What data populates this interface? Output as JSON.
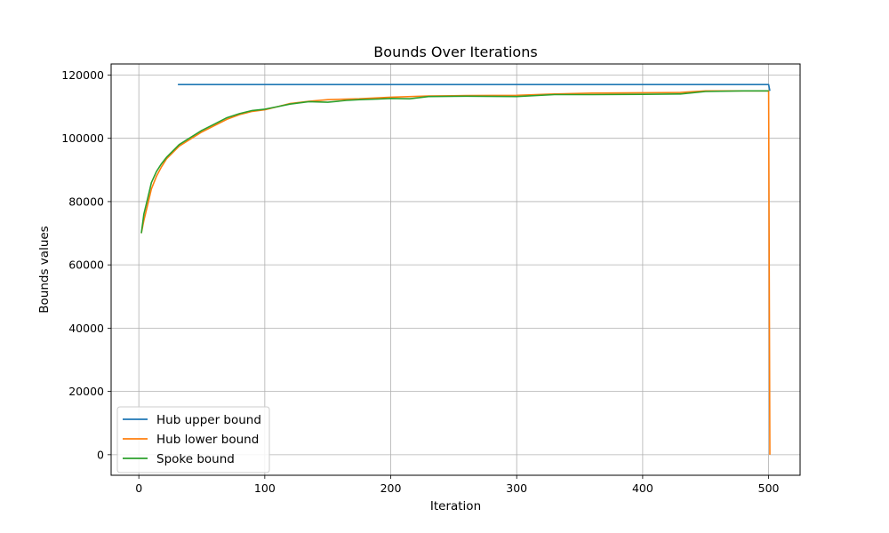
{
  "chart_data": {
    "type": "line",
    "title": "Bounds Over Iterations",
    "xlabel": "Iteration",
    "ylabel": "Bounds values",
    "xlim": [
      -22,
      525
    ],
    "ylim": [
      -6500,
      123500
    ],
    "xticks": [
      0,
      100,
      200,
      300,
      400,
      500
    ],
    "yticks": [
      0,
      20000,
      40000,
      60000,
      80000,
      100000,
      120000
    ],
    "grid": true,
    "legend_position": "lower-left",
    "colors": {
      "hub_upper": "#1f77b4",
      "hub_lower": "#ff7f0e",
      "spoke": "#2ca02c",
      "grid": "#b0b0b0"
    },
    "series": [
      {
        "name": "Hub upper bound",
        "color": "#1f77b4",
        "x": [
          31,
          500,
          501
        ],
        "y": [
          117000,
          117000,
          115000
        ]
      },
      {
        "name": "Hub lower bound",
        "color": "#ff7f0e",
        "x": [
          2,
          4,
          7,
          10,
          14,
          18,
          22,
          27,
          32,
          40,
          50,
          60,
          70,
          80,
          90,
          100,
          110,
          120,
          135,
          150,
          175,
          200,
          230,
          260,
          300,
          330,
          360,
          400,
          430,
          450,
          480,
          500,
          501
        ],
        "y": [
          70000,
          74000,
          79000,
          84000,
          88000,
          91000,
          93500,
          95500,
          97500,
          99500,
          102000,
          104000,
          106000,
          107500,
          108500,
          109000,
          110000,
          111000,
          111700,
          112200,
          112500,
          113000,
          113400,
          113500,
          113600,
          114000,
          114300,
          114400,
          114500,
          115000,
          115000,
          115000,
          0
        ]
      },
      {
        "name": "Spoke bound",
        "color": "#2ca02c",
        "x": [
          2,
          4,
          7,
          10,
          14,
          18,
          22,
          27,
          32,
          40,
          50,
          60,
          70,
          80,
          90,
          100,
          110,
          120,
          135,
          150,
          165,
          175,
          190,
          200,
          215,
          230,
          260,
          300,
          330,
          360,
          400,
          430,
          450,
          480,
          500
        ],
        "y": [
          70000,
          76000,
          81000,
          86000,
          89500,
          92000,
          94000,
          96000,
          98000,
          100000,
          102500,
          104500,
          106500,
          107800,
          108800,
          109200,
          110000,
          110800,
          111600,
          111400,
          112000,
          112200,
          112400,
          112600,
          112500,
          113200,
          113300,
          113200,
          113800,
          113800,
          113900,
          114000,
          114800,
          115000,
          115000
        ]
      }
    ]
  }
}
